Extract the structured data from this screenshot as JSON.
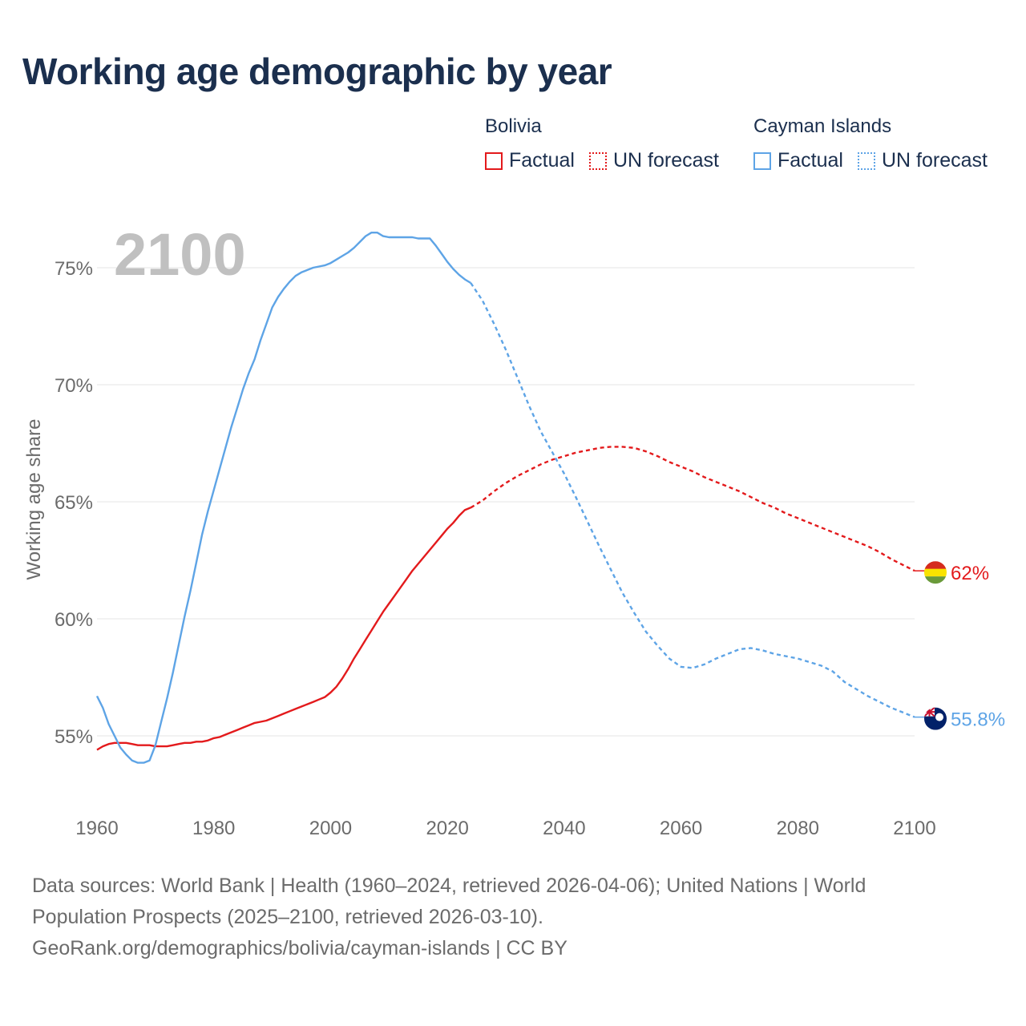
{
  "title": "Working age demographic by year",
  "legend": {
    "groups": [
      {
        "name": "Bolivia",
        "items": [
          {
            "label": "Factual",
            "style": "solid",
            "color": "#e31a1c"
          },
          {
            "label": "UN forecast",
            "style": "dotted",
            "color": "#e31a1c"
          }
        ]
      },
      {
        "name": "Cayman Islands",
        "items": [
          {
            "label": "Factual",
            "style": "solid",
            "color": "#5ea4e6"
          },
          {
            "label": "UN forecast",
            "style": "dotted",
            "color": "#5ea4e6"
          }
        ]
      }
    ]
  },
  "year_watermark": "2100",
  "chart_data": {
    "type": "line",
    "title": "Working age demographic by year",
    "xlabel": "",
    "ylabel": "Working age share",
    "xlim": [
      1960,
      2100
    ],
    "ylim": [
      53.0,
      77.5
    ],
    "x_ticks": [
      "1960",
      "1980",
      "2000",
      "2020",
      "2040",
      "2060",
      "2080",
      "2100"
    ],
    "y_ticks": [
      {
        "value": 55,
        "label": "55%"
      },
      {
        "value": 60,
        "label": "60%"
      },
      {
        "value": 65,
        "label": "65%"
      },
      {
        "value": 70,
        "label": "70%"
      },
      {
        "value": 75,
        "label": "75%"
      }
    ],
    "grid": "horizontal",
    "series": [
      {
        "name": "Bolivia",
        "color": "#e31a1c",
        "end_label": "62%",
        "flag_colors": [
          "#d52b1e",
          "#f9e300",
          "#6a9a3a"
        ],
        "factual": {
          "x": [
            1960,
            1961,
            1962,
            1963,
            1964,
            1965,
            1966,
            1967,
            1968,
            1969,
            1970,
            1971,
            1972,
            1973,
            1974,
            1975,
            1976,
            1977,
            1978,
            1979,
            1980,
            1981,
            1982,
            1983,
            1984,
            1985,
            1986,
            1987,
            1988,
            1989,
            1990,
            1991,
            1992,
            1993,
            1994,
            1995,
            1996,
            1997,
            1998,
            1999,
            2000,
            2001,
            2002,
            2003,
            2004,
            2005,
            2006,
            2007,
            2008,
            2009,
            2010,
            2011,
            2012,
            2013,
            2014,
            2015,
            2016,
            2017,
            2018,
            2019,
            2020,
            2021,
            2022,
            2023,
            2024
          ],
          "y": [
            54.4,
            54.55,
            54.65,
            54.7,
            54.7,
            54.7,
            54.65,
            54.6,
            54.6,
            54.6,
            54.55,
            54.55,
            54.55,
            54.6,
            54.65,
            54.7,
            54.7,
            54.75,
            54.75,
            54.8,
            54.9,
            54.95,
            55.05,
            55.15,
            55.25,
            55.35,
            55.45,
            55.55,
            55.6,
            55.65,
            55.75,
            55.85,
            55.95,
            56.05,
            56.15,
            56.25,
            56.35,
            56.45,
            56.55,
            56.65,
            56.85,
            57.1,
            57.45,
            57.85,
            58.3,
            58.7,
            59.1,
            59.5,
            59.9,
            60.3,
            60.65,
            61.0,
            61.35,
            61.7,
            62.05,
            62.35,
            62.65,
            62.95,
            63.25,
            63.55,
            63.85,
            64.1,
            64.4,
            64.65,
            64.75
          ]
        },
        "forecast": {
          "x": [
            2024,
            2026,
            2028,
            2030,
            2032,
            2034,
            2036,
            2038,
            2040,
            2042,
            2044,
            2046,
            2048,
            2050,
            2052,
            2054,
            2056,
            2058,
            2060,
            2062,
            2064,
            2066,
            2068,
            2070,
            2072,
            2074,
            2076,
            2078,
            2080,
            2082,
            2084,
            2086,
            2088,
            2090,
            2092,
            2094,
            2096,
            2098,
            2100
          ],
          "y": [
            64.75,
            65.05,
            65.45,
            65.8,
            66.1,
            66.35,
            66.6,
            66.8,
            66.95,
            67.1,
            67.2,
            67.3,
            67.35,
            67.35,
            67.3,
            67.15,
            66.95,
            66.7,
            66.5,
            66.3,
            66.05,
            65.85,
            65.65,
            65.45,
            65.2,
            64.95,
            64.75,
            64.5,
            64.3,
            64.1,
            63.9,
            63.7,
            63.5,
            63.3,
            63.1,
            62.85,
            62.55,
            62.3,
            62.05
          ]
        }
      },
      {
        "name": "Cayman Islands",
        "color": "#5ea4e6",
        "end_label": "55.8%",
        "flag_colors": [
          "#012169",
          "#c8102e",
          "#ffffff"
        ],
        "factual": {
          "x": [
            1960,
            1961,
            1962,
            1963,
            1964,
            1965,
            1966,
            1967,
            1968,
            1969,
            1970,
            1971,
            1972,
            1973,
            1974,
            1975,
            1976,
            1977,
            1978,
            1979,
            1980,
            1981,
            1982,
            1983,
            1984,
            1985,
            1986,
            1987,
            1988,
            1989,
            1990,
            1991,
            1992,
            1993,
            1994,
            1995,
            1996,
            1997,
            1998,
            1999,
            2000,
            2001,
            2002,
            2003,
            2004,
            2005,
            2006,
            2007,
            2008,
            2009,
            2010,
            2011,
            2012,
            2013,
            2014,
            2015,
            2016,
            2017,
            2018,
            2019,
            2020,
            2021,
            2022,
            2023,
            2024
          ],
          "y": [
            56.7,
            56.2,
            55.5,
            55.0,
            54.5,
            54.2,
            53.95,
            53.85,
            53.85,
            53.95,
            54.6,
            55.6,
            56.6,
            57.7,
            58.9,
            60.1,
            61.2,
            62.4,
            63.6,
            64.6,
            65.5,
            66.4,
            67.3,
            68.2,
            69.0,
            69.8,
            70.5,
            71.1,
            71.9,
            72.6,
            73.3,
            73.75,
            74.1,
            74.4,
            74.65,
            74.8,
            74.9,
            75.0,
            75.05,
            75.1,
            75.2,
            75.35,
            75.5,
            75.65,
            75.85,
            76.1,
            76.35,
            76.5,
            76.5,
            76.35,
            76.3,
            76.3,
            76.3,
            76.3,
            76.3,
            76.25,
            76.25,
            76.25,
            75.95,
            75.6,
            75.25,
            74.95,
            74.7,
            74.5,
            74.35
          ]
        },
        "forecast": {
          "x": [
            2024,
            2026,
            2028,
            2030,
            2032,
            2034,
            2036,
            2038,
            2040,
            2042,
            2044,
            2046,
            2048,
            2050,
            2052,
            2054,
            2056,
            2058,
            2060,
            2062,
            2064,
            2066,
            2068,
            2070,
            2072,
            2074,
            2076,
            2078,
            2080,
            2082,
            2084,
            2086,
            2088,
            2090,
            2092,
            2094,
            2096,
            2098,
            2100
          ],
          "y": [
            74.35,
            73.6,
            72.6,
            71.5,
            70.3,
            69.1,
            68.0,
            67.1,
            66.2,
            65.2,
            64.15,
            63.1,
            62.1,
            61.1,
            60.25,
            59.45,
            58.85,
            58.3,
            57.95,
            57.9,
            58.05,
            58.3,
            58.5,
            58.7,
            58.75,
            58.65,
            58.5,
            58.4,
            58.3,
            58.15,
            58.0,
            57.75,
            57.3,
            57.0,
            56.7,
            56.45,
            56.2,
            56.0,
            55.8
          ]
        }
      }
    ]
  },
  "footer": {
    "line1": "Data sources: World Bank | Health (1960–2024, retrieved 2026-04-06); United Nations | World",
    "line2": "Population Prospects (2025–2100, retrieved 2026-03-10).",
    "line3": "GeoRank.org/demographics/bolivia/cayman-islands | CC BY"
  }
}
